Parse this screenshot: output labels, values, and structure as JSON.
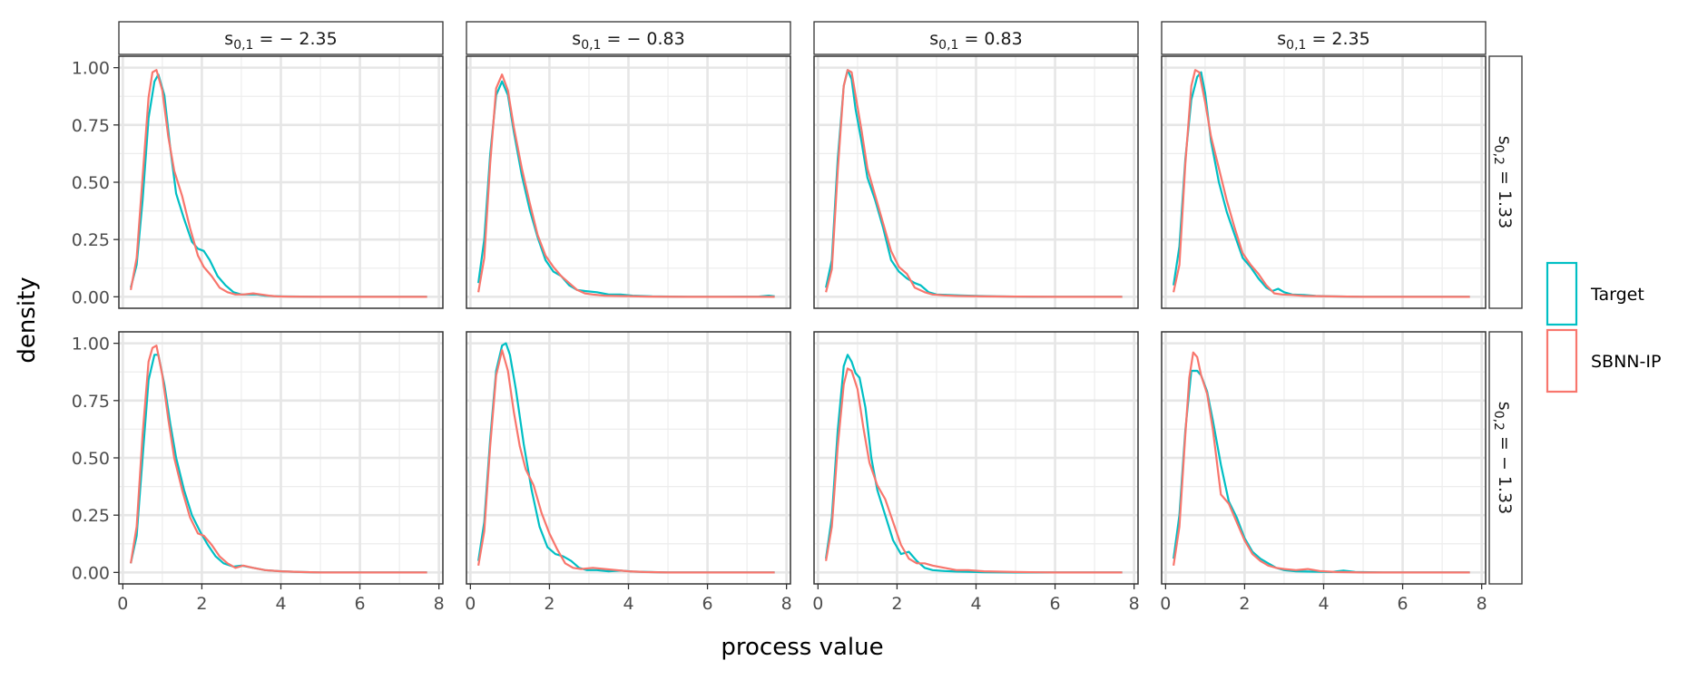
{
  "chart_data": {
    "type": "line",
    "kind": "faceted density plot",
    "xlabel": "process value",
    "ylabel": "density",
    "xlim": [
      0,
      8
    ],
    "ylim": [
      0,
      1.05
    ],
    "x_ticks": [
      "0",
      "2",
      "4",
      "6",
      "8"
    ],
    "y_ticks": [
      "0.00",
      "0.25",
      "0.50",
      "0.75",
      "1.00"
    ],
    "col_facets": [
      {
        "base": "s",
        "sub": "0,1",
        "rest": " = − 2.35"
      },
      {
        "base": "s",
        "sub": "0,1",
        "rest": " = − 0.83"
      },
      {
        "base": "s",
        "sub": "0,1",
        "rest": " = 0.83"
      },
      {
        "base": "s",
        "sub": "0,1",
        "rest": " = 2.35"
      }
    ],
    "row_facets": [
      {
        "base": "s",
        "sub": "0,2",
        "rest": " = 1.33"
      },
      {
        "base": "s",
        "sub": "0,2",
        "rest": " = − 1.33"
      }
    ],
    "legend": {
      "position": "right",
      "entries": [
        "Target",
        "SBNN-IP"
      ]
    },
    "series_colors": {
      "Target": "#00BFC4",
      "SBNN-IP": "#F8766D"
    },
    "series": [
      {
        "name": "Target",
        "row": 0,
        "col": 0,
        "x": [
          0.2,
          0.35,
          0.5,
          0.65,
          0.8,
          0.9,
          1.05,
          1.2,
          1.35,
          1.55,
          1.75,
          1.9,
          2.05,
          2.2,
          2.4,
          2.6,
          2.8,
          3.0,
          3.2,
          3.4,
          3.6,
          3.8,
          4.0,
          4.5,
          5,
          6,
          7,
          7.7
        ],
        "y": [
          0.04,
          0.14,
          0.42,
          0.78,
          0.94,
          0.97,
          0.88,
          0.65,
          0.45,
          0.34,
          0.24,
          0.21,
          0.2,
          0.16,
          0.09,
          0.05,
          0.02,
          0.01,
          0.01,
          0.01,
          0.005,
          0.003,
          0.002,
          0.001,
          0,
          0,
          0,
          0
        ]
      },
      {
        "name": "SBNN-IP",
        "row": 0,
        "col": 0,
        "x": [
          0.2,
          0.35,
          0.5,
          0.65,
          0.75,
          0.85,
          1.0,
          1.15,
          1.3,
          1.5,
          1.7,
          1.9,
          2.05,
          2.25,
          2.45,
          2.65,
          2.85,
          3.05,
          3.3,
          3.5,
          3.7,
          3.9,
          4.2,
          5,
          6,
          7,
          7.7
        ],
        "y": [
          0.03,
          0.17,
          0.52,
          0.87,
          0.98,
          0.99,
          0.9,
          0.7,
          0.55,
          0.44,
          0.3,
          0.18,
          0.13,
          0.09,
          0.04,
          0.02,
          0.01,
          0.01,
          0.015,
          0.01,
          0.005,
          0.002,
          0.001,
          0,
          0,
          0,
          0
        ]
      },
      {
        "name": "Target",
        "row": 0,
        "col": 1,
        "x": [
          0.2,
          0.35,
          0.5,
          0.65,
          0.8,
          0.95,
          1.1,
          1.3,
          1.5,
          1.7,
          1.9,
          2.1,
          2.3,
          2.5,
          2.7,
          2.9,
          3.2,
          3.5,
          3.8,
          4.1,
          4.6,
          5.5,
          6.5,
          7.3,
          7.55,
          7.7
        ],
        "y": [
          0.06,
          0.25,
          0.62,
          0.88,
          0.94,
          0.88,
          0.72,
          0.53,
          0.38,
          0.26,
          0.16,
          0.11,
          0.09,
          0.05,
          0.03,
          0.025,
          0.02,
          0.01,
          0.01,
          0.005,
          0.002,
          0,
          0,
          0.001,
          0.005,
          0.002
        ]
      },
      {
        "name": "SBNN-IP",
        "row": 0,
        "col": 1,
        "x": [
          0.2,
          0.35,
          0.5,
          0.65,
          0.8,
          0.95,
          1.1,
          1.3,
          1.5,
          1.7,
          1.9,
          2.1,
          2.3,
          2.5,
          2.7,
          2.9,
          3.1,
          3.4,
          3.7,
          4.0,
          4.5,
          5.5,
          6.5,
          7.7
        ],
        "y": [
          0.02,
          0.17,
          0.58,
          0.91,
          0.97,
          0.9,
          0.74,
          0.56,
          0.41,
          0.27,
          0.18,
          0.13,
          0.09,
          0.06,
          0.03,
          0.015,
          0.01,
          0.005,
          0.004,
          0.003,
          0.001,
          0,
          0,
          0
        ]
      },
      {
        "name": "Target",
        "row": 0,
        "col": 2,
        "x": [
          0.2,
          0.35,
          0.5,
          0.65,
          0.75,
          0.85,
          0.95,
          1.1,
          1.25,
          1.45,
          1.65,
          1.85,
          2.05,
          2.25,
          2.45,
          2.6,
          2.8,
          3.0,
          3.3,
          3.6,
          4.0,
          4.5,
          5.5,
          6.5,
          7.7
        ],
        "y": [
          0.04,
          0.16,
          0.6,
          0.92,
          0.99,
          0.95,
          0.82,
          0.68,
          0.52,
          0.42,
          0.3,
          0.16,
          0.11,
          0.08,
          0.06,
          0.05,
          0.02,
          0.01,
          0.008,
          0.006,
          0.004,
          0.002,
          0,
          0,
          0
        ]
      },
      {
        "name": "SBNN-IP",
        "row": 0,
        "col": 2,
        "x": [
          0.2,
          0.35,
          0.5,
          0.65,
          0.75,
          0.85,
          0.95,
          1.1,
          1.25,
          1.45,
          1.65,
          1.85,
          2.05,
          2.25,
          2.45,
          2.7,
          2.9,
          3.2,
          3.5,
          3.8,
          4.2,
          5,
          6,
          7.7
        ],
        "y": [
          0.02,
          0.12,
          0.55,
          0.92,
          0.99,
          0.98,
          0.88,
          0.73,
          0.56,
          0.44,
          0.32,
          0.2,
          0.13,
          0.1,
          0.04,
          0.02,
          0.01,
          0.006,
          0.004,
          0.003,
          0.002,
          0.001,
          0,
          0
        ]
      },
      {
        "name": "Target",
        "row": 0,
        "col": 3,
        "x": [
          0.2,
          0.35,
          0.5,
          0.65,
          0.8,
          0.9,
          1.0,
          1.15,
          1.35,
          1.55,
          1.75,
          1.95,
          2.15,
          2.35,
          2.55,
          2.7,
          2.85,
          3.0,
          3.2,
          3.5,
          3.8,
          4.2,
          5,
          6,
          7.7
        ],
        "y": [
          0.05,
          0.22,
          0.6,
          0.86,
          0.96,
          0.98,
          0.89,
          0.68,
          0.5,
          0.37,
          0.27,
          0.17,
          0.13,
          0.08,
          0.04,
          0.025,
          0.035,
          0.02,
          0.01,
          0.008,
          0.004,
          0.002,
          0,
          0,
          0
        ]
      },
      {
        "name": "SBNN-IP",
        "row": 0,
        "col": 3,
        "x": [
          0.2,
          0.35,
          0.5,
          0.65,
          0.75,
          0.85,
          1.0,
          1.15,
          1.35,
          1.55,
          1.75,
          1.95,
          2.15,
          2.35,
          2.55,
          2.75,
          2.95,
          3.2,
          3.5,
          3.8,
          4.2,
          5,
          6,
          7.7
        ],
        "y": [
          0.02,
          0.14,
          0.58,
          0.92,
          0.99,
          0.98,
          0.85,
          0.7,
          0.56,
          0.42,
          0.3,
          0.19,
          0.14,
          0.1,
          0.05,
          0.015,
          0.01,
          0.008,
          0.004,
          0.003,
          0.002,
          0,
          0,
          0
        ]
      },
      {
        "name": "Target",
        "row": 1,
        "col": 0,
        "x": [
          0.2,
          0.35,
          0.5,
          0.65,
          0.8,
          0.9,
          1.05,
          1.2,
          1.35,
          1.55,
          1.75,
          1.95,
          2.15,
          2.35,
          2.55,
          2.8,
          3.0,
          3.3,
          3.6,
          4.0,
          4.5,
          5,
          6,
          7,
          7.7
        ],
        "y": [
          0.04,
          0.16,
          0.5,
          0.84,
          0.95,
          0.95,
          0.82,
          0.65,
          0.5,
          0.36,
          0.25,
          0.18,
          0.12,
          0.07,
          0.04,
          0.025,
          0.03,
          0.02,
          0.01,
          0.005,
          0.002,
          0,
          0,
          0,
          0
        ]
      },
      {
        "name": "SBNN-IP",
        "row": 1,
        "col": 0,
        "x": [
          0.2,
          0.35,
          0.5,
          0.65,
          0.75,
          0.85,
          1.0,
          1.15,
          1.3,
          1.5,
          1.7,
          1.9,
          2.05,
          2.25,
          2.45,
          2.65,
          2.85,
          3.05,
          3.3,
          3.6,
          4.0,
          4.5,
          5,
          6,
          7.7
        ],
        "y": [
          0.04,
          0.2,
          0.6,
          0.92,
          0.98,
          0.99,
          0.86,
          0.67,
          0.5,
          0.36,
          0.24,
          0.17,
          0.16,
          0.12,
          0.07,
          0.04,
          0.02,
          0.03,
          0.02,
          0.01,
          0.005,
          0.002,
          0,
          0,
          0
        ]
      },
      {
        "name": "Target",
        "row": 1,
        "col": 1,
        "x": [
          0.2,
          0.35,
          0.5,
          0.65,
          0.8,
          0.9,
          1.0,
          1.15,
          1.35,
          1.55,
          1.75,
          1.95,
          2.15,
          2.35,
          2.55,
          2.75,
          2.95,
          3.2,
          3.5,
          3.8,
          4.1,
          4.5,
          5,
          6,
          7.7
        ],
        "y": [
          0.05,
          0.22,
          0.58,
          0.88,
          0.99,
          1.0,
          0.95,
          0.8,
          0.56,
          0.36,
          0.2,
          0.11,
          0.08,
          0.07,
          0.05,
          0.02,
          0.01,
          0.01,
          0.005,
          0.008,
          0.004,
          0.002,
          0,
          0,
          0
        ]
      },
      {
        "name": "SBNN-IP",
        "row": 1,
        "col": 1,
        "x": [
          0.2,
          0.35,
          0.5,
          0.65,
          0.8,
          0.95,
          1.1,
          1.25,
          1.4,
          1.6,
          1.8,
          2.0,
          2.2,
          2.4,
          2.6,
          2.8,
          3.1,
          3.4,
          3.7,
          4.0,
          4.4,
          5,
          6,
          7.7
        ],
        "y": [
          0.03,
          0.18,
          0.55,
          0.86,
          0.97,
          0.88,
          0.7,
          0.55,
          0.45,
          0.38,
          0.26,
          0.17,
          0.1,
          0.04,
          0.02,
          0.015,
          0.02,
          0.015,
          0.01,
          0.005,
          0.002,
          0,
          0,
          0
        ]
      },
      {
        "name": "Target",
        "row": 1,
        "col": 2,
        "x": [
          0.2,
          0.35,
          0.5,
          0.65,
          0.75,
          0.85,
          0.95,
          1.05,
          1.2,
          1.35,
          1.5,
          1.7,
          1.9,
          2.1,
          2.3,
          2.5,
          2.7,
          2.9,
          3.2,
          3.5,
          3.8,
          4.2,
          5,
          6,
          7.7
        ],
        "y": [
          0.06,
          0.24,
          0.62,
          0.9,
          0.95,
          0.92,
          0.87,
          0.85,
          0.72,
          0.5,
          0.36,
          0.25,
          0.14,
          0.08,
          0.09,
          0.05,
          0.02,
          0.01,
          0.006,
          0.004,
          0.003,
          0.001,
          0,
          0,
          0
        ]
      },
      {
        "name": "SBNN-IP",
        "row": 1,
        "col": 2,
        "x": [
          0.2,
          0.35,
          0.5,
          0.65,
          0.75,
          0.85,
          1.0,
          1.15,
          1.3,
          1.5,
          1.7,
          1.9,
          2.1,
          2.3,
          2.5,
          2.7,
          2.9,
          3.2,
          3.5,
          3.8,
          4.2,
          5,
          6,
          7.7
        ],
        "y": [
          0.05,
          0.2,
          0.55,
          0.82,
          0.89,
          0.88,
          0.8,
          0.63,
          0.48,
          0.38,
          0.32,
          0.22,
          0.12,
          0.06,
          0.04,
          0.04,
          0.03,
          0.02,
          0.01,
          0.01,
          0.005,
          0.002,
          0,
          0
        ]
      },
      {
        "name": "Target",
        "row": 1,
        "col": 3,
        "x": [
          0.2,
          0.35,
          0.5,
          0.65,
          0.8,
          0.9,
          1.05,
          1.2,
          1.4,
          1.6,
          1.8,
          2.0,
          2.2,
          2.4,
          2.6,
          2.8,
          3.0,
          3.3,
          3.6,
          3.9,
          4.2,
          4.5,
          4.8,
          5.5,
          6.5,
          7.7
        ],
        "y": [
          0.06,
          0.25,
          0.62,
          0.88,
          0.88,
          0.86,
          0.79,
          0.66,
          0.47,
          0.31,
          0.24,
          0.15,
          0.09,
          0.06,
          0.04,
          0.02,
          0.01,
          0.005,
          0.004,
          0.003,
          0.002,
          0.008,
          0.002,
          0,
          0,
          0
        ]
      },
      {
        "name": "SBNN-IP",
        "row": 1,
        "col": 3,
        "x": [
          0.2,
          0.35,
          0.5,
          0.6,
          0.7,
          0.8,
          0.9,
          1.05,
          1.2,
          1.4,
          1.6,
          1.8,
          2.0,
          2.2,
          2.4,
          2.6,
          2.8,
          3.0,
          3.3,
          3.6,
          3.9,
          4.3,
          5,
          6,
          7.7
        ],
        "y": [
          0.03,
          0.2,
          0.6,
          0.85,
          0.96,
          0.94,
          0.86,
          0.78,
          0.62,
          0.34,
          0.3,
          0.22,
          0.14,
          0.08,
          0.05,
          0.03,
          0.02,
          0.015,
          0.01,
          0.015,
          0.006,
          0.002,
          0,
          0,
          0
        ]
      }
    ]
  }
}
